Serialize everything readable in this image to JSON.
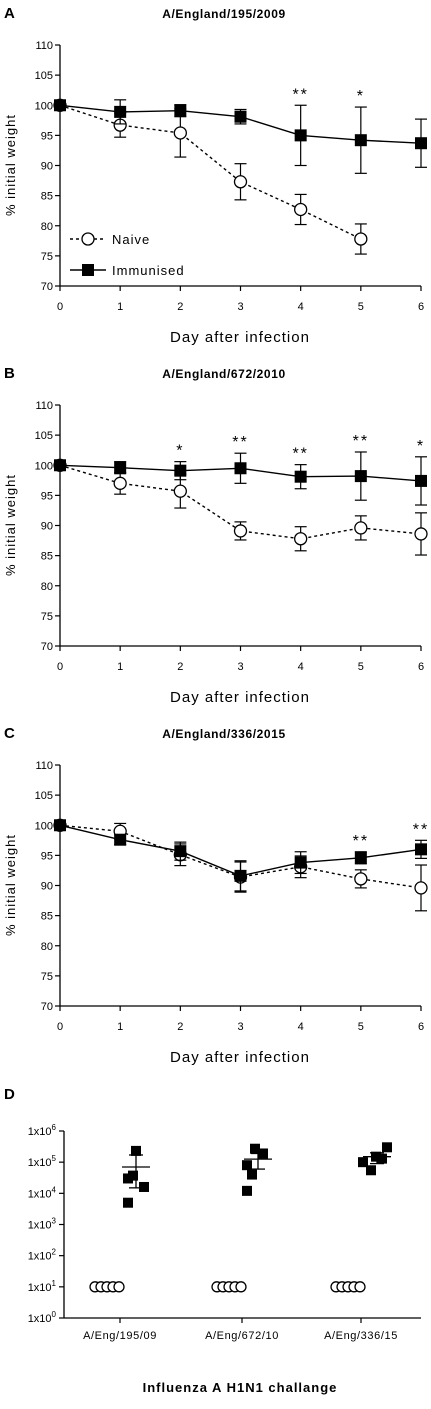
{
  "figure": {
    "panels": [
      {
        "letter": "A",
        "title": "A/England/195/2009"
      },
      {
        "letter": "B",
        "title": "A/England/672/2010"
      },
      {
        "letter": "C",
        "title": "A/England/336/2015"
      },
      {
        "letter": "D",
        "title": ""
      }
    ]
  },
  "chart_data": [
    {
      "type": "line",
      "title": "A/England/195/2009",
      "xlabel": "Day after infection",
      "ylabel": "% initial weight",
      "x": [
        0,
        1,
        2,
        3,
        4,
        5,
        6
      ],
      "xlim": [
        0,
        6
      ],
      "ylim": [
        70,
        110
      ],
      "yticks": [
        70,
        75,
        80,
        85,
        90,
        95,
        100,
        105,
        110
      ],
      "legend": "bottom-left",
      "series": [
        {
          "name": "Naive",
          "marker": "open-circle",
          "line": "dashed",
          "values": [
            100,
            96.7,
            95.4,
            87.3,
            82.7,
            77.8,
            null
          ],
          "errors": [
            0,
            2.0,
            4.0,
            3.0,
            2.5,
            2.5,
            null
          ]
        },
        {
          "name": "Immunised",
          "marker": "filled-square",
          "line": "solid",
          "values": [
            100,
            98.9,
            99.1,
            98.1,
            95.0,
            94.2,
            93.7
          ],
          "errors": [
            0,
            2.0,
            1.0,
            1.2,
            5.0,
            5.5,
            4.0
          ]
        }
      ],
      "annotations": [
        {
          "x": 4,
          "text": "**"
        },
        {
          "x": 5,
          "text": "*"
        }
      ]
    },
    {
      "type": "line",
      "title": "A/England/672/2010",
      "xlabel": "Day after infection",
      "ylabel": "% initial weight",
      "x": [
        0,
        1,
        2,
        3,
        4,
        5,
        6
      ],
      "xlim": [
        0,
        6
      ],
      "ylim": [
        70,
        110
      ],
      "yticks": [
        70,
        75,
        80,
        85,
        90,
        95,
        100,
        105,
        110
      ],
      "series": [
        {
          "name": "Naive",
          "marker": "open-circle",
          "line": "dashed",
          "values": [
            100,
            97.0,
            95.7,
            89.1,
            87.8,
            89.6,
            88.6
          ],
          "errors": [
            0,
            1.8,
            2.8,
            1.5,
            2.0,
            2.0,
            3.5
          ]
        },
        {
          "name": "Immunised",
          "marker": "filled-square",
          "line": "solid",
          "values": [
            100,
            99.6,
            99.1,
            99.5,
            98.1,
            98.2,
            97.4
          ],
          "errors": [
            0,
            1.0,
            1.5,
            2.5,
            2.0,
            4.0,
            4.0
          ]
        }
      ],
      "annotations": [
        {
          "x": 2,
          "text": "*"
        },
        {
          "x": 3,
          "text": "**"
        },
        {
          "x": 4,
          "text": "**"
        },
        {
          "x": 5,
          "text": "**"
        },
        {
          "x": 6,
          "text": "*"
        }
      ]
    },
    {
      "type": "line",
      "title": "A/England/336/2015",
      "xlabel": "Day after infection",
      "ylabel": "% initial weight",
      "x": [
        0,
        1,
        2,
        3,
        4,
        5,
        6
      ],
      "xlim": [
        0,
        6
      ],
      "ylim": [
        70,
        110
      ],
      "yticks": [
        70,
        75,
        80,
        85,
        90,
        95,
        100,
        105,
        110
      ],
      "series": [
        {
          "name": "Naive",
          "marker": "open-circle",
          "line": "dashed",
          "values": [
            100,
            99.0,
            95.1,
            91.4,
            93.1,
            91.1,
            89.6
          ],
          "errors": [
            0,
            1.3,
            1.8,
            2.5,
            1.8,
            1.5,
            3.8
          ]
        },
        {
          "name": "Immunised",
          "marker": "filled-square",
          "line": "solid",
          "values": [
            100,
            97.6,
            95.7,
            91.6,
            93.8,
            94.6,
            96.0
          ],
          "errors": [
            0,
            0.8,
            1.5,
            2.5,
            1.8,
            1.0,
            1.5
          ]
        }
      ],
      "annotations": [
        {
          "x": 5,
          "text": "**"
        },
        {
          "x": 6,
          "text": "**"
        }
      ]
    },
    {
      "type": "scatter",
      "title": "",
      "xlabel": "Influenza A H1N1 challange",
      "ylabel": "",
      "yscale": "log",
      "ylim": [
        1,
        1000000
      ],
      "yticks": [
        {
          "value": 1,
          "mantissa": "1x10",
          "exp": "0"
        },
        {
          "value": 10,
          "mantissa": "1x10",
          "exp": "1"
        },
        {
          "value": 100,
          "mantissa": "1x10",
          "exp": "2"
        },
        {
          "value": 1000,
          "mantissa": "1x10",
          "exp": "3"
        },
        {
          "value": 10000,
          "mantissa": "1x10",
          "exp": "4"
        },
        {
          "value": 100000,
          "mantissa": "1x10",
          "exp": "5"
        },
        {
          "value": 1000000,
          "mantissa": "1x10",
          "exp": "6"
        }
      ],
      "categories": [
        "A/Eng/195/09",
        "A/Eng/672/10",
        "A/Eng/336/15"
      ],
      "series": [
        {
          "marker": "open-circle",
          "values": [
            [
              10,
              10,
              10,
              10,
              10
            ],
            [
              10,
              10,
              10,
              10,
              10
            ],
            [
              10,
              10,
              10,
              10,
              10
            ]
          ],
          "mean": [
            null,
            null,
            null
          ]
        },
        {
          "marker": "filled-square",
          "values": [
            [
              230000,
              30000,
              16000,
              37000,
              5000
            ],
            [
              270000,
              80000,
              190000,
              40000,
              12000
            ],
            [
              150000,
              100000,
              130000,
              300000,
              55000
            ]
          ],
          "mean": [
            70000,
            125000,
            150000
          ],
          "sem_bounds": [
            [
              15000,
              170000
            ],
            [
              60000,
              190000
            ],
            [
              90000,
              200000
            ]
          ]
        }
      ]
    }
  ]
}
